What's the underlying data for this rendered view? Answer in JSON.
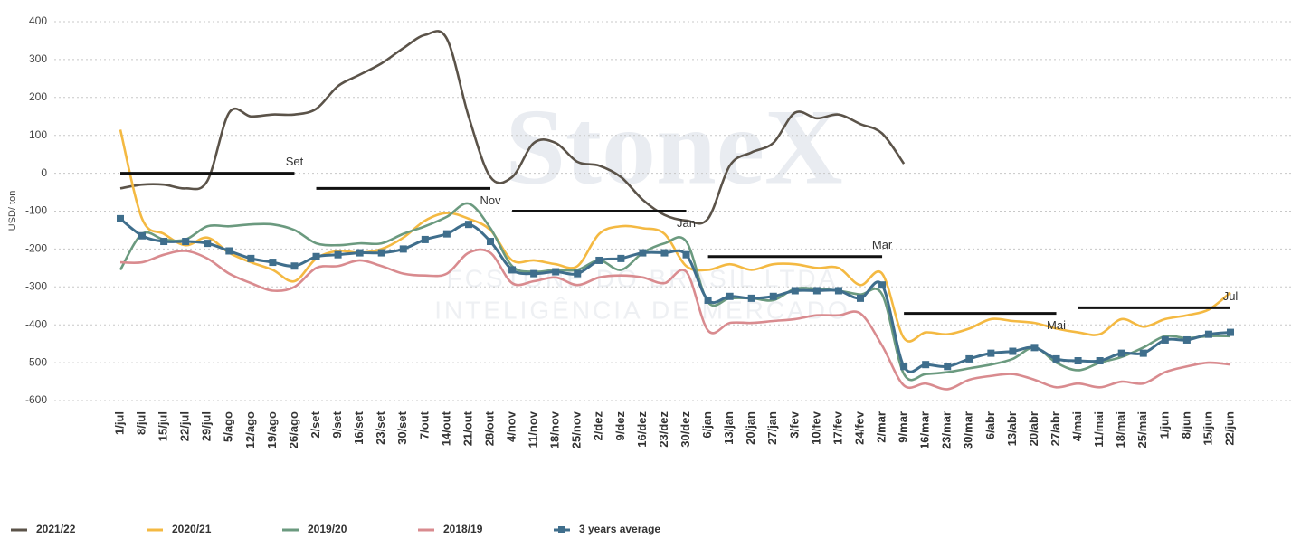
{
  "chart_data": {
    "type": "line",
    "y_label": "USD/ ton",
    "watermark": [
      "StoneX",
      "FCSTONE DO BRASIL LTDA",
      "INTELIGÊNCIA DE MERCADO"
    ],
    "categories": [
      "1/jul",
      "8/jul",
      "15/jul",
      "22/jul",
      "29/jul",
      "5/ago",
      "12/ago",
      "19/ago",
      "26/ago",
      "2/set",
      "9/set",
      "16/set",
      "23/set",
      "30/set",
      "7/out",
      "14/out",
      "21/out",
      "28/out",
      "4/nov",
      "11/nov",
      "18/nov",
      "25/nov",
      "2/dez",
      "9/dez",
      "16/dez",
      "23/dez",
      "30/dez",
      "6/jan",
      "13/jan",
      "20/jan",
      "27/jan",
      "3/fev",
      "10/fev",
      "17/fev",
      "24/fev",
      "2/mar",
      "9/mar",
      "16/mar",
      "23/mar",
      "30/mar",
      "6/abr",
      "13/abr",
      "20/abr",
      "27/abr",
      "4/mai",
      "11/mai",
      "18/mai",
      "25/mai",
      "1/jun",
      "8/jun",
      "15/jun",
      "22/jun"
    ],
    "ylim": [
      -600,
      400
    ],
    "yticks": [
      -600,
      -500,
      -400,
      -300,
      -200,
      -100,
      0,
      100,
      200,
      300,
      400
    ],
    "grid": true,
    "legend": "bottom",
    "series": [
      {
        "name": "2021/22",
        "color": "#5b5349",
        "marker": false,
        "values": [
          -40,
          -30,
          -30,
          -40,
          -20,
          160,
          150,
          155,
          155,
          170,
          230,
          260,
          290,
          330,
          365,
          355,
          150,
          -10,
          -10,
          80,
          80,
          30,
          20,
          -10,
          -70,
          -110,
          -125,
          -120,
          20,
          55,
          80,
          160,
          145,
          155,
          130,
          105,
          25,
          null,
          null,
          null,
          null,
          null,
          null,
          null,
          null,
          null,
          null,
          null,
          null,
          null,
          null,
          null
        ]
      },
      {
        "name": "2020/21",
        "color": "#f4b942",
        "marker": false,
        "values": [
          115,
          -120,
          -160,
          -190,
          -170,
          -210,
          -235,
          -255,
          -285,
          -225,
          -205,
          -210,
          -200,
          -170,
          -125,
          -105,
          -120,
          -150,
          -230,
          -230,
          -240,
          -245,
          -160,
          -140,
          -145,
          -160,
          -245,
          -255,
          -240,
          -255,
          -240,
          -240,
          -250,
          -250,
          -295,
          -265,
          -435,
          -420,
          -425,
          -410,
          -385,
          -390,
          -395,
          -410,
          -420,
          -425,
          -385,
          -405,
          -385,
          -375,
          -360,
          -315
        ]
      },
      {
        "name": "2019/20",
        "color": "#6b9a7f",
        "marker": false,
        "values": [
          -255,
          -160,
          -175,
          -175,
          -140,
          -140,
          -135,
          -135,
          -150,
          -185,
          -190,
          -185,
          -185,
          -160,
          -140,
          -115,
          -80,
          -145,
          -245,
          -260,
          -255,
          -255,
          -230,
          -255,
          -210,
          -185,
          -180,
          -340,
          -330,
          -330,
          -335,
          -305,
          -305,
          -310,
          -320,
          -320,
          -530,
          -530,
          -525,
          -515,
          -505,
          -490,
          -460,
          -500,
          -520,
          -500,
          -485,
          -460,
          -430,
          -435,
          -430,
          -430
        ]
      },
      {
        "name": "2018/19",
        "color": "#d98b8f",
        "marker": false,
        "values": [
          -235,
          -235,
          -215,
          -205,
          -225,
          -265,
          -290,
          -310,
          -300,
          -250,
          -245,
          -230,
          -245,
          -265,
          -270,
          -265,
          -210,
          -210,
          -290,
          -285,
          -275,
          -295,
          -275,
          -270,
          -275,
          -290,
          -260,
          -415,
          -395,
          -395,
          -390,
          -385,
          -375,
          -375,
          -370,
          -455,
          -560,
          -555,
          -570,
          -545,
          -535,
          -530,
          -545,
          -565,
          -555,
          -565,
          -550,
          -555,
          -525,
          -510,
          -500,
          -505
        ]
      },
      {
        "name": "3 years average",
        "color": "#3f6e8c",
        "marker": true,
        "values": [
          -120,
          -165,
          -180,
          -180,
          -185,
          -205,
          -225,
          -235,
          -245,
          -220,
          -215,
          -210,
          -210,
          -200,
          -175,
          -160,
          -135,
          -180,
          -255,
          -265,
          -260,
          -265,
          -230,
          -225,
          -210,
          -210,
          -215,
          -335,
          -325,
          -330,
          -325,
          -310,
          -310,
          -310,
          -330,
          -295,
          -510,
          -505,
          -510,
          -490,
          -475,
          -470,
          -460,
          -490,
          -495,
          -495,
          -475,
          -475,
          -440,
          -440,
          -425,
          -420
        ]
      }
    ],
    "reference_lines": [
      {
        "label": "Set",
        "value": 0,
        "start": "1/jul",
        "end": "26/ago"
      },
      {
        "label": "Nov",
        "value": -40,
        "start": "2/set",
        "end": "28/out"
      },
      {
        "label": "Jan",
        "value": -100,
        "start": "4/nov",
        "end": "30/dez"
      },
      {
        "label": "Mar",
        "value": -220,
        "start": "6/jan",
        "end": "2/mar"
      },
      {
        "label": "Mai",
        "value": -370,
        "start": "9/mar",
        "end": "27/abr"
      },
      {
        "label": "Jul",
        "value": -355,
        "start": "4/mai",
        "end": "22/jun"
      }
    ]
  }
}
